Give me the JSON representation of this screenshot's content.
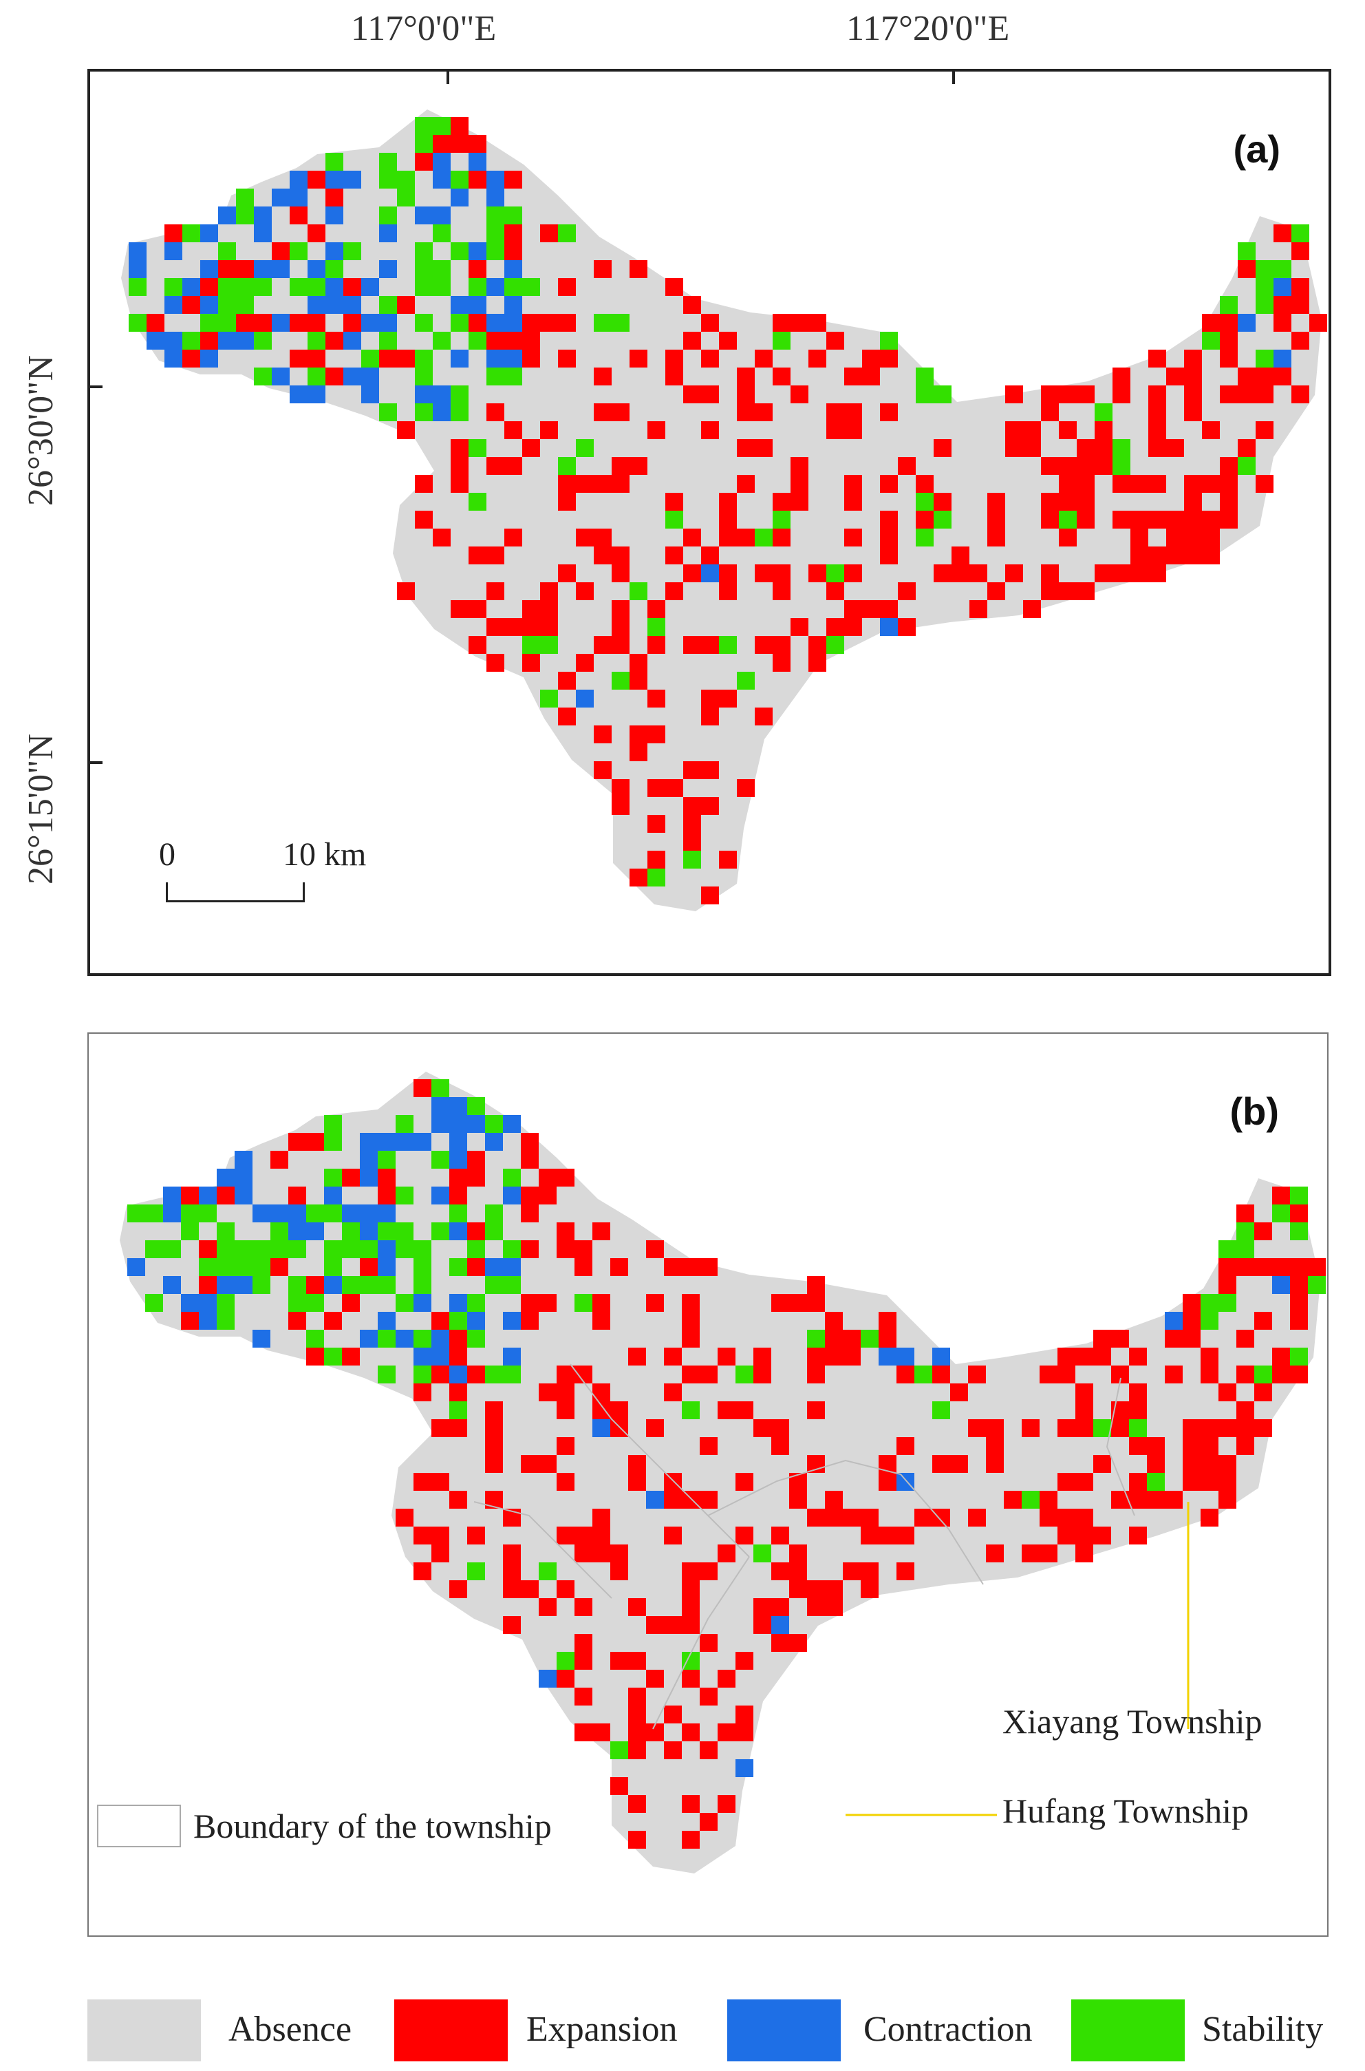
{
  "axes": {
    "lon_labels": [
      "117°0'0\"E",
      "117°20'0\"E"
    ],
    "lat_labels": [
      "26°30'0\"N",
      "26°15'0\"N"
    ]
  },
  "panels": [
    {
      "label": "(a)"
    },
    {
      "label": "(b)"
    }
  ],
  "scale_bar": {
    "start": "0",
    "end": "10 km"
  },
  "annotations": {
    "boundary_legend": "Boundary of the township",
    "xiayang": "Xiayang Township",
    "hufang": "Hufang Township"
  },
  "legend": [
    {
      "label": "Absence",
      "color": "#d9d9d9"
    },
    {
      "label": "Expansion",
      "color": "#ff0000"
    },
    {
      "label": "Contraction",
      "color": "#1e6fe6"
    },
    {
      "label": "Stability",
      "color": "#33e000"
    }
  ],
  "colors": {
    "absence": "#d9d9d9",
    "expansion": "#ff0000",
    "contraction": "#1e6fe6",
    "stability": "#33e000",
    "leader_line": "#f2d200"
  }
}
